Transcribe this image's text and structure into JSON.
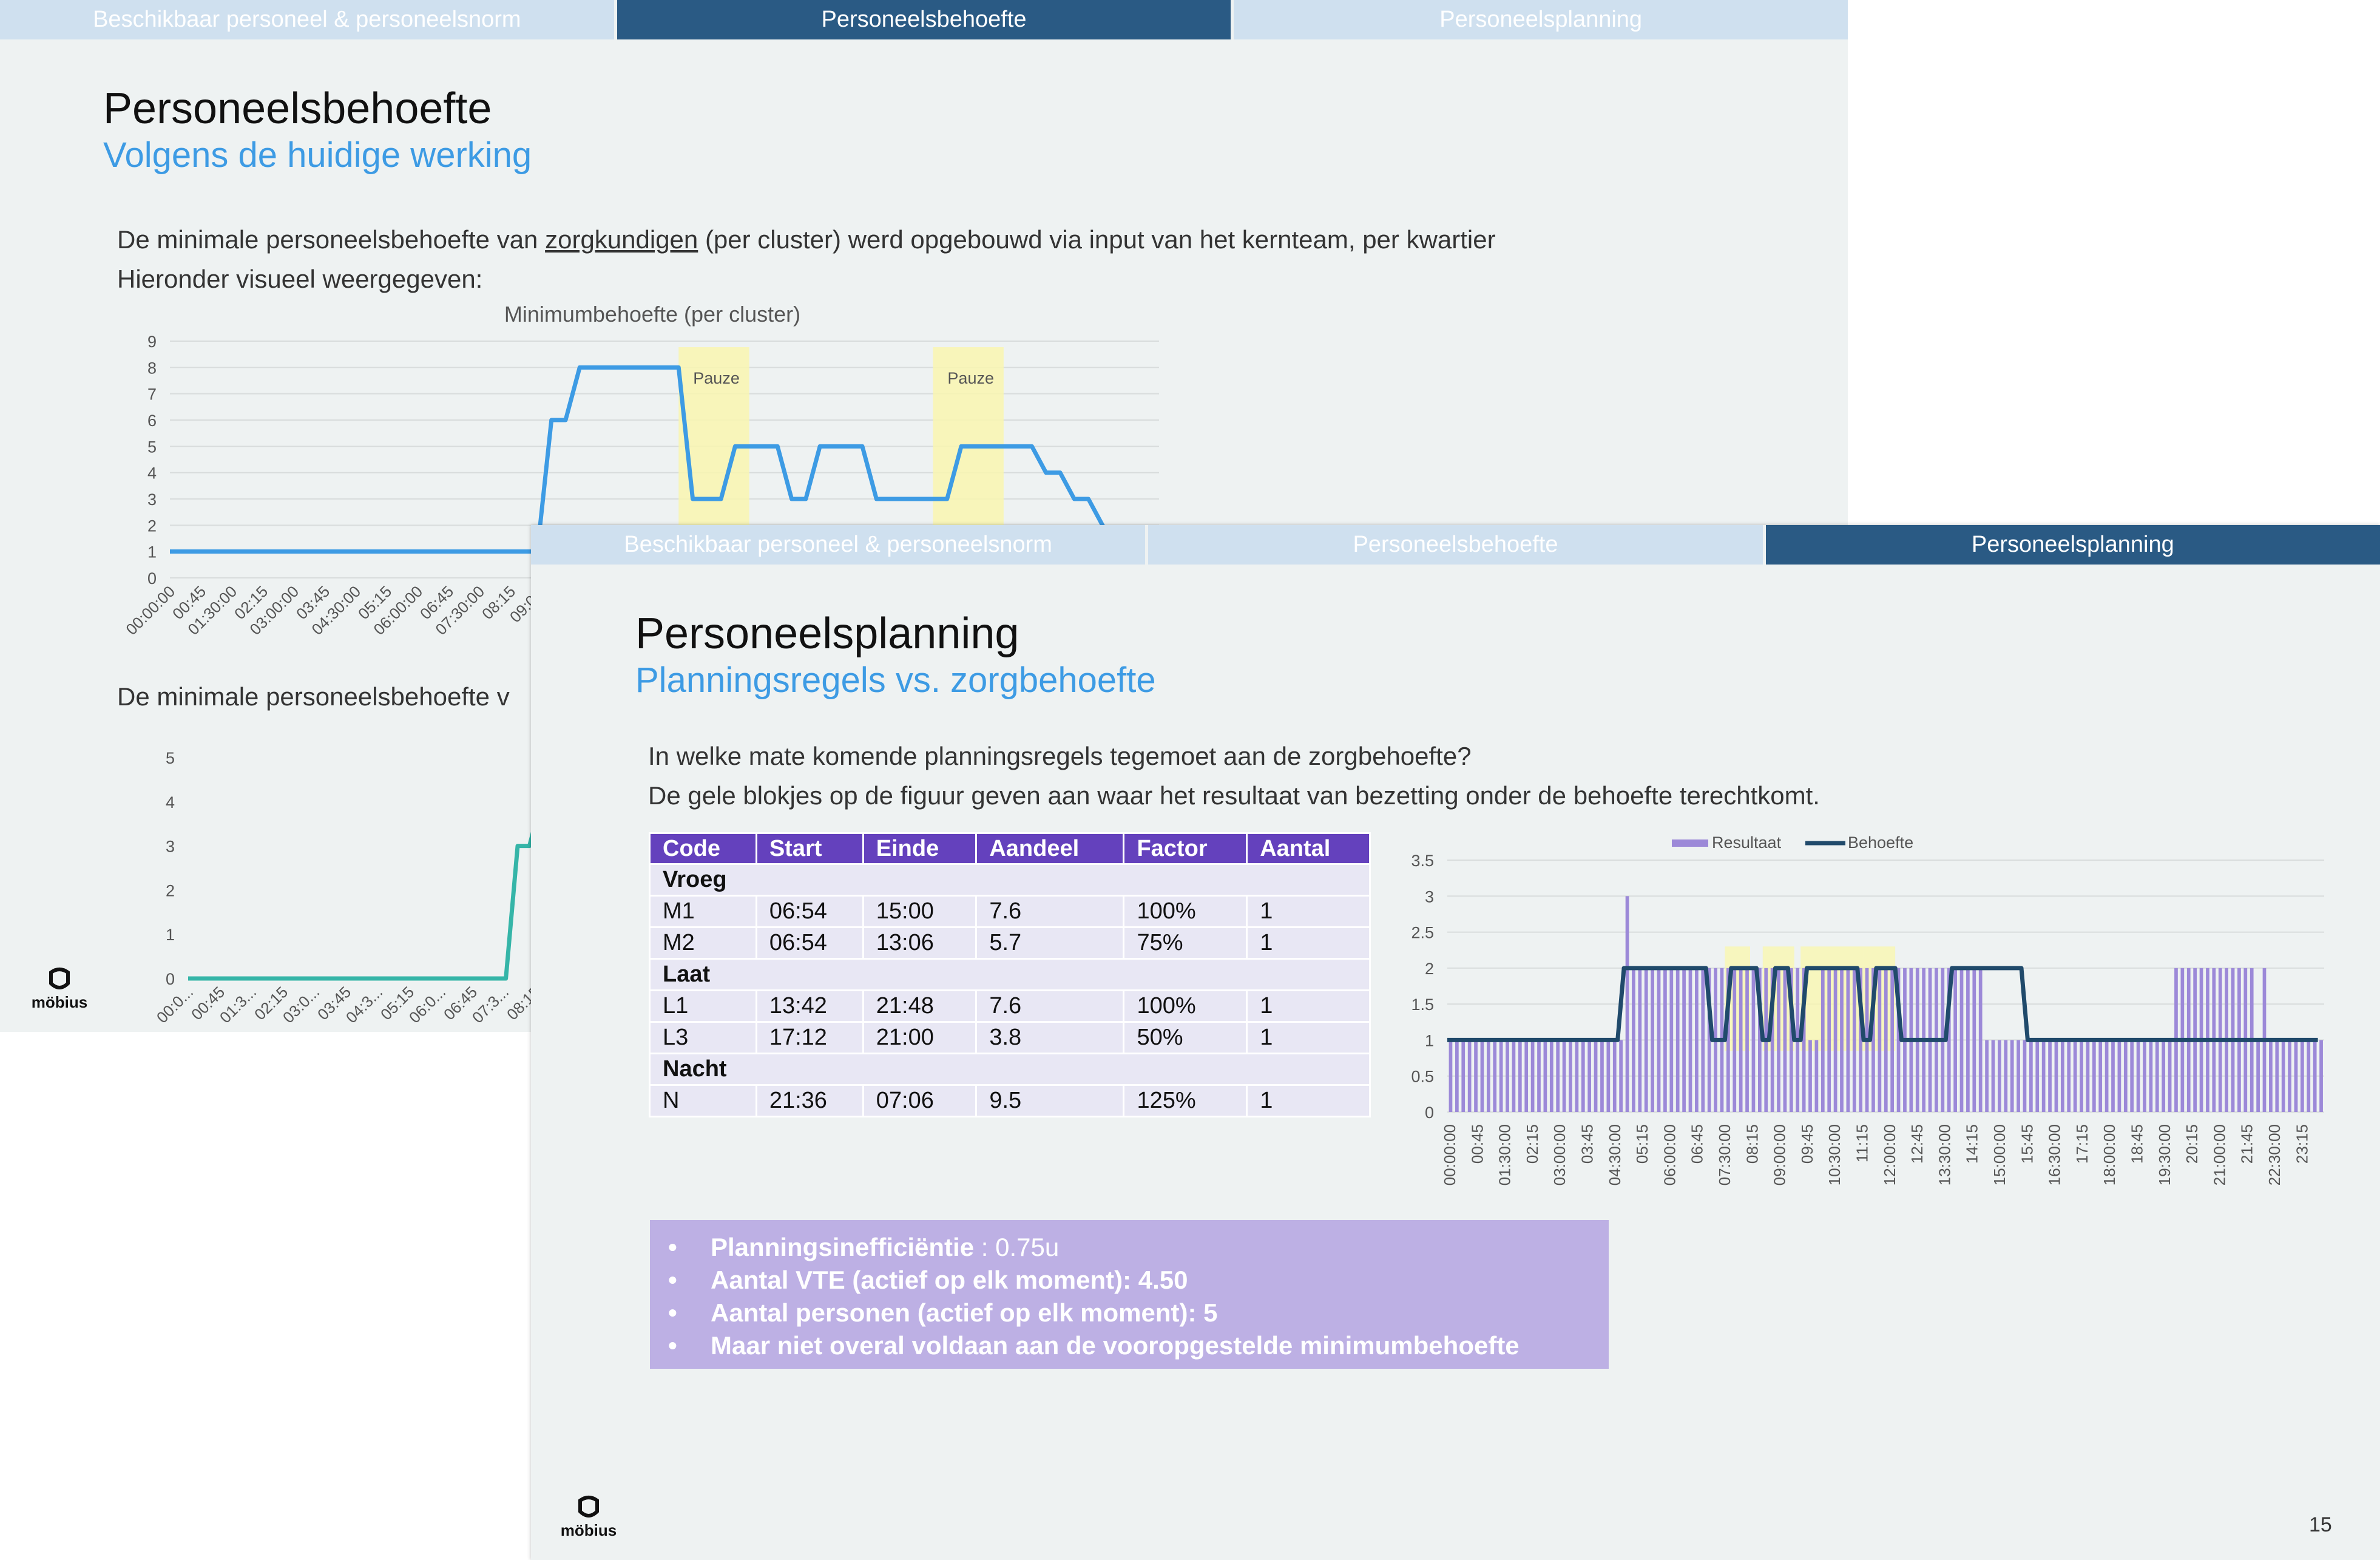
{
  "back_slide": {
    "tabs": [
      {
        "label": "Beschikbaar personeel & personeelsnorm",
        "active": false
      },
      {
        "label": "Personeelsbehoefte",
        "active": true
      },
      {
        "label": "Personeelsplanning",
        "active": false
      }
    ],
    "title": "Personeelsbehoefte",
    "subtitle": "Volgens de huidige werking",
    "paragraph": {
      "before": "De minimale personeelsbehoefte van ",
      "underlined": "zorgkundigen",
      "after": " (per cluster) werd opgebouwd via input van het kernteam, per kwartier",
      "line2": "Hieronder visueel weergegeven:"
    },
    "paragraph2": "De minimale personeelsbehoefte v",
    "logo_text": "möbius"
  },
  "front_slide": {
    "tabs": [
      {
        "label": "Beschikbaar personeel & personeelsnorm",
        "active": false
      },
      {
        "label": "Personeelsbehoefte",
        "active": false
      },
      {
        "label": "Personeelsplanning",
        "active": true
      }
    ],
    "title": "Personeelsplanning",
    "subtitle": "Planningsregels vs. zorgbehoefte",
    "intro_line1": "In welke mate komende planningsregels tegemoet aan de zorgbehoefte?",
    "intro_line2": "De gele blokjes op de figuur geven aan waar het resultaat van bezetting onder de behoefte terechtkomt.",
    "table": {
      "headers": [
        "Code",
        "Start",
        "Einde",
        "Aandeel",
        "Factor",
        "Aantal"
      ],
      "groups": [
        {
          "name": "Vroeg",
          "rows": [
            [
              "M1",
              "06:54",
              "15:00",
              "7.6",
              "100%",
              "1"
            ],
            [
              "M2",
              "06:54",
              "13:06",
              "5.7",
              "75%",
              "1"
            ]
          ]
        },
        {
          "name": "Laat",
          "rows": [
            [
              "L1",
              "13:42",
              "21:48",
              "7.6",
              "100%",
              "1"
            ],
            [
              "L3",
              "17:12",
              "21:00",
              "3.8",
              "50%",
              "1"
            ]
          ]
        },
        {
          "name": "Nacht",
          "rows": [
            [
              "N",
              "21:36",
              "07:06",
              "9.5",
              "125%",
              "1"
            ]
          ]
        }
      ]
    },
    "bullets": [
      {
        "bold": "Planningsinefficiëntie",
        "rest": " : 0.75u"
      },
      {
        "bold": "Aantal VTE (actief op elk moment): 4.50",
        "rest": ""
      },
      {
        "bold": "Aantal personen (actief op elk moment): 5",
        "rest": ""
      },
      {
        "bold": "Maar niet overal voldaan aan de vooropgestelde minimumbehoefte",
        "rest": ""
      }
    ],
    "page_number": "15",
    "logo_text": "möbius"
  },
  "chart_data": [
    {
      "type": "line",
      "title": "Minimumbehoefte (per cluster)",
      "ylim": [
        0,
        9
      ],
      "yticks": [
        "0",
        "1",
        "2",
        "3",
        "4",
        "5",
        "6",
        "7",
        "8",
        "9"
      ],
      "x_tick_labels": [
        "00:00:00",
        "00:45",
        "01:30:00",
        "02:15",
        "03:00:00",
        "03:45",
        "04:30:00",
        "05:15",
        "06:00:00",
        "06:45",
        "07:30:00",
        "08:15",
        "09:00:"
      ],
      "series": [
        {
          "color": "#3d9be4",
          "points": [
            [
              0,
              1
            ],
            [
              26,
              1
            ],
            [
              27,
              6
            ],
            [
              28,
              6
            ],
            [
              29,
              8
            ],
            [
              36,
              8
            ],
            [
              37,
              3
            ],
            [
              39,
              3
            ],
            [
              40,
              5
            ],
            [
              43,
              5
            ],
            [
              44,
              3
            ],
            [
              45,
              3
            ],
            [
              46,
              5
            ],
            [
              49,
              5
            ],
            [
              50,
              3
            ],
            [
              55,
              3
            ],
            [
              56,
              5
            ],
            [
              61,
              5
            ],
            [
              62,
              4
            ],
            [
              63,
              4
            ],
            [
              64,
              3
            ],
            [
              65,
              3
            ],
            [
              66,
              2
            ],
            [
              67,
              1
            ],
            [
              70,
              1
            ]
          ]
        }
      ],
      "annotations": [
        {
          "label": "Pauze",
          "x_start": 36,
          "x_end": 41
        },
        {
          "label": "Pauze",
          "x_start": 54,
          "x_end": 59
        }
      ],
      "grid": true
    },
    {
      "type": "line",
      "ylim": [
        0,
        5
      ],
      "yticks": [
        "0",
        "1",
        "2",
        "3",
        "4",
        "5"
      ],
      "x_tick_labels": [
        "00:0...",
        "00:45",
        "01:3...",
        "02:15",
        "03:0...",
        "03:45",
        "04:3...",
        "05:15",
        "06:0...",
        "06:45",
        "07:3...",
        "08:15"
      ],
      "series": [
        {
          "color": "#35b5a8",
          "points": [
            [
              0,
              0
            ],
            [
              27,
              0
            ],
            [
              28,
              3
            ],
            [
              29,
              3
            ],
            [
              30,
              4
            ],
            [
              33,
              4
            ]
          ]
        }
      ],
      "grid": false
    },
    {
      "type": "bar",
      "ylim": [
        0,
        3.5
      ],
      "yticks": [
        "0",
        "0.5",
        "1",
        "1.5",
        "2",
        "2.5",
        "3",
        "3.5"
      ],
      "x_tick_labels": [
        "00:00:00",
        "00:45",
        "01:30:00",
        "02:15",
        "03:00:00",
        "03:45",
        "04:30:00",
        "05:15",
        "06:00:00",
        "06:45",
        "07:30:00",
        "08:15",
        "09:00:00",
        "09:45",
        "10:30:00",
        "11:15",
        "12:00:00",
        "12:45",
        "13:30:00",
        "14:15",
        "15:00:00",
        "15:45",
        "16:30:00",
        "17:15",
        "18:00:00",
        "18:45",
        "19:30:00",
        "20:15",
        "21:00:00",
        "21:45",
        "22:30:00",
        "23:15"
      ],
      "legend": {
        "position": "top",
        "entries": [
          "Resultaat",
          "Behoefte"
        ]
      },
      "series": [
        {
          "name": "Resultaat",
          "kind": "bar",
          "color": "#9c89d8",
          "segments": [
            [
              0,
              27,
              1
            ],
            [
              28,
              28,
              3
            ],
            [
              29,
              56,
              2
            ],
            [
              57,
              58,
              1
            ],
            [
              59,
              84,
              2
            ],
            [
              85,
              86,
              1
            ],
            [
              87,
              114,
              1
            ],
            [
              115,
              127,
              2
            ],
            [
              128,
              128,
              1
            ],
            [
              129,
              129,
              2
            ],
            [
              130,
              138,
              1
            ]
          ]
        },
        {
          "name": "Behoefte",
          "kind": "line",
          "color": "#204a6b",
          "points": [
            [
              0,
              1
            ],
            [
              27,
              1
            ],
            [
              28,
              2
            ],
            [
              41,
              2
            ],
            [
              42,
              1
            ],
            [
              44,
              1
            ],
            [
              45,
              2
            ],
            [
              49,
              2
            ],
            [
              50,
              1
            ],
            [
              51,
              1
            ],
            [
              52,
              2
            ],
            [
              54,
              2
            ],
            [
              55,
              1
            ],
            [
              56,
              1
            ],
            [
              57,
              2
            ],
            [
              65,
              2
            ],
            [
              66,
              1
            ],
            [
              67,
              1
            ],
            [
              68,
              2
            ],
            [
              71,
              2
            ],
            [
              72,
              1
            ],
            [
              79,
              1
            ],
            [
              80,
              2
            ],
            [
              91,
              2
            ],
            [
              92,
              1
            ],
            [
              138,
              1
            ]
          ]
        }
      ],
      "highlights": [
        [
          44,
          48
        ],
        [
          50,
          55
        ],
        [
          56,
          66
        ],
        [
          66,
          71
        ]
      ],
      "grid": true
    }
  ]
}
